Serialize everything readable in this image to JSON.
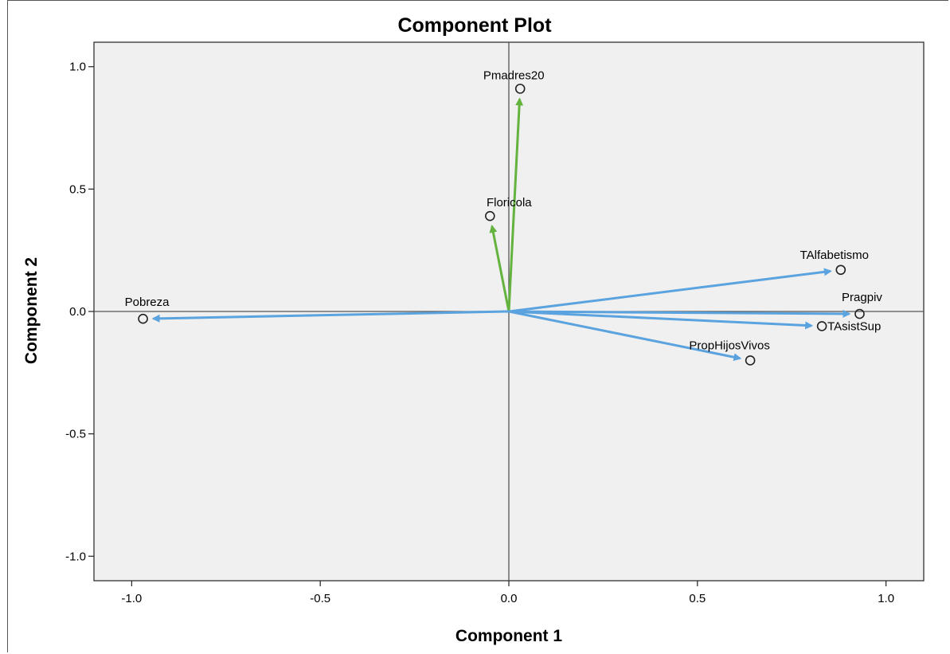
{
  "chart_data": {
    "type": "scatter",
    "title": "Component Plot",
    "xlabel": "Component 1",
    "ylabel": "Component 2",
    "xlim": [
      -1.1,
      1.1
    ],
    "ylim": [
      -1.1,
      1.1
    ],
    "xticks": [
      "-1.0",
      "-0.5",
      "0.0",
      "0.5",
      "1.0"
    ],
    "yticks": [
      "1.0",
      "0.5",
      "0.0",
      "-0.5",
      "-1.0"
    ],
    "grid": false,
    "points": [
      {
        "label": "Pmadres20",
        "x": 0.03,
        "y": 0.91,
        "color": "#63b33e"
      },
      {
        "label": "Floricola",
        "x": -0.05,
        "y": 0.39,
        "color": "#63b33e"
      },
      {
        "label": "TAlfabetismo",
        "x": 0.88,
        "y": 0.17,
        "color": "#5ba3df"
      },
      {
        "label": "Pragpiv",
        "x": 0.93,
        "y": -0.01,
        "color": "#5ba3df"
      },
      {
        "label": "TAsistSup",
        "x": 0.83,
        "y": -0.06,
        "color": "#5ba3df"
      },
      {
        "label": "PropHijosVivos",
        "x": 0.64,
        "y": -0.2,
        "color": "#5ba3df"
      },
      {
        "label": "Pobreza",
        "x": -0.97,
        "y": -0.03,
        "color": "#5ba3df"
      }
    ]
  }
}
